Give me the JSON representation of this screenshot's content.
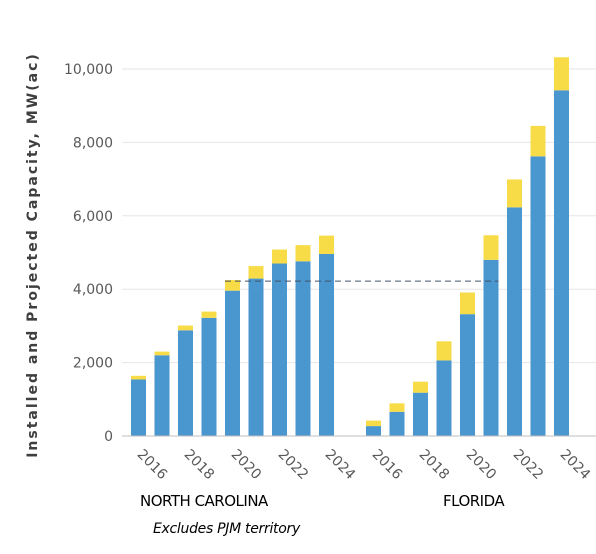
{
  "chart_data": {
    "type": "bar",
    "stacked": true,
    "ylabel": "Installed and Projected Capacity, MW(ac)",
    "ylim": [
      0,
      10500
    ],
    "yticks": [
      "0",
      "2,000",
      "4,000",
      "6,000",
      "8,000",
      "10,000"
    ],
    "ytick_values": [
      0,
      2000,
      4000,
      6000,
      8000,
      10000
    ],
    "grid": true,
    "colors": {
      "base": "#4a96cf",
      "top": "#f7db47",
      "grid": "#e6e6e6",
      "axis": "#bfbfbf",
      "reference_line": "#44546a"
    },
    "groups": [
      {
        "name": "NORTH CAROLINA",
        "categories": [
          "2016",
          "2017",
          "2018",
          "2019",
          "2020",
          "2021",
          "2022",
          "2023",
          "2024"
        ],
        "tick_labels": [
          "2016",
          "2018",
          "2020",
          "2022",
          "2024"
        ],
        "series": [
          {
            "values": [
              1540,
              2200,
              2880,
              3220,
              3960,
              4290,
              4700,
              4760,
              4960
            ]
          },
          {
            "values": [
              100,
              100,
              130,
              170,
              290,
              340,
              380,
              440,
              500
            ]
          }
        ]
      },
      {
        "name": "FLORIDA",
        "categories": [
          "2016",
          "2017",
          "2018",
          "2019",
          "2020",
          "2021",
          "2022",
          "2023",
          "2024"
        ],
        "tick_labels": [
          "2016",
          "2018",
          "2020",
          "2022",
          "2024"
        ],
        "series": [
          {
            "values": [
              270,
              660,
              1180,
              2060,
              3320,
              4800,
              6230,
              7620,
              9420
            ]
          },
          {
            "values": [
              150,
              230,
              300,
              520,
              590,
              670,
              760,
              830,
              900
            ]
          }
        ]
      }
    ],
    "reference_line": {
      "value": 4220,
      "style": "dashed",
      "from_group_index": [
        0,
        4
      ],
      "to_group_index": [
        1,
        5
      ]
    },
    "note": "Excludes PJM territory"
  }
}
